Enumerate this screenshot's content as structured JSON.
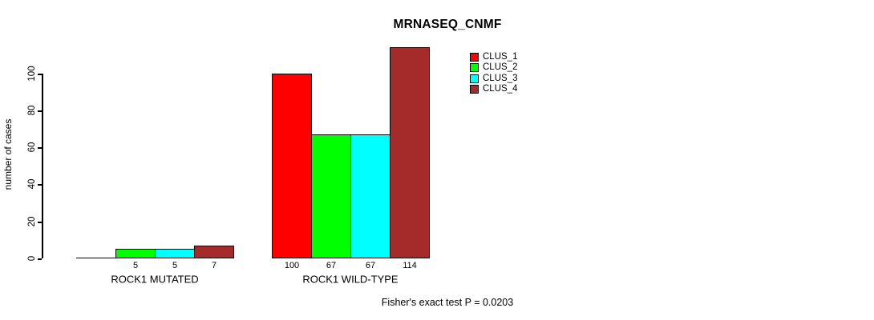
{
  "chart_data": {
    "type": "bar",
    "title": "MRNASEQ_CNMF",
    "xlabel": "",
    "ylabel": "number of cases",
    "ylim": [
      0,
      100
    ],
    "yticks": [
      0,
      20,
      40,
      60,
      80,
      100
    ],
    "grid": false,
    "legend_position": "top-right",
    "background": "#FFFFFF",
    "axis_color": "#000000",
    "text_color": "#000000",
    "categories": [
      "ROCK1 MUTATED",
      "ROCK1 WILD-TYPE"
    ],
    "series": [
      {
        "name": "CLUS_1",
        "color": "#FF0000",
        "values": [
          0,
          100
        ]
      },
      {
        "name": "CLUS_2",
        "color": "#00FF00",
        "values": [
          5,
          67
        ]
      },
      {
        "name": "CLUS_3",
        "color": "#00FFFF",
        "values": [
          5,
          67
        ]
      },
      {
        "name": "CLUS_4",
        "color": "#A52A2A",
        "values": [
          7,
          114
        ]
      }
    ],
    "bar_value_labels": [
      [
        "",
        "5",
        "5",
        "7"
      ],
      [
        "100",
        "67",
        "67",
        "114"
      ]
    ],
    "annotation": "Fisher's exact test P = 0.0203"
  }
}
